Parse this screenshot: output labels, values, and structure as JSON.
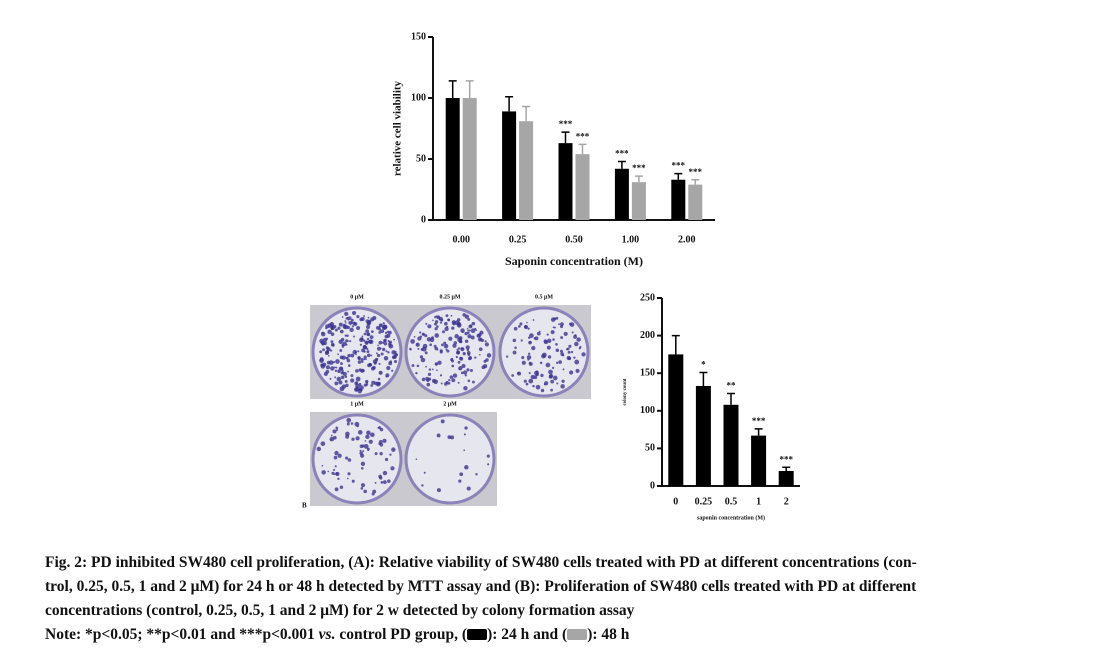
{
  "chart_data": [
    {
      "type": "bar",
      "ylabel": "relative cell viability",
      "xlabel": "Saponin concentration (M)",
      "categories": [
        "0.00",
        "0.25",
        "0.50",
        "1.00",
        "2.00"
      ],
      "series": [
        {
          "color": "#000000",
          "values": [
            100,
            89,
            63,
            42,
            33
          ],
          "errors": [
            14,
            12,
            9,
            6,
            5
          ],
          "annotations": [
            null,
            null,
            "***",
            "***",
            "***"
          ]
        },
        {
          "color": "#a6a6a6",
          "values": [
            100,
            81,
            54,
            31,
            29
          ],
          "errors": [
            14,
            12,
            8,
            5,
            4
          ],
          "annotations": [
            null,
            null,
            "***",
            "***",
            "***"
          ]
        }
      ],
      "ylim": [
        0,
        150
      ],
      "yticks": [
        0,
        50,
        100,
        150
      ]
    },
    {
      "type": "bar",
      "ylabel": "colony count",
      "xlabel": "saponin concentration (M)",
      "categories": [
        "0",
        "0.25",
        "0.5",
        "1",
        "2"
      ],
      "series": [
        {
          "color": "#000000",
          "values": [
            175,
            133,
            108,
            67,
            20
          ],
          "errors": [
            25,
            18,
            15,
            9,
            5
          ],
          "annotations": [
            null,
            "*",
            "**",
            "***",
            "***"
          ]
        }
      ],
      "ylim": [
        0,
        250
      ],
      "yticks": [
        0,
        50,
        100,
        150,
        200,
        250
      ]
    }
  ],
  "panel_label": "B",
  "dishes": [
    "0 μM",
    "0.25 μM",
    "0.5 μM",
    "1 μM",
    "2 μM"
  ],
  "caption": {
    "lines": [
      "Fig. 2: PD inhibited SW480 cell proliferation, (A): Relative viability of SW480 cells treated with PD at different concentrations (con-",
      "trol, 0.25, 0.5, 1 and 2 μM) for 24 h or 48 h detected by MTT assay and (B): Proliferation of SW480 cells treated with PD at different",
      "concentrations (control, 0.25, 0.5, 1 and 2 μM) for 2 w detected by colony formation assay"
    ],
    "note_start": "Note: *p<0.05; **p<0.01 and ***p<0.001 ",
    "note_italic": "vs.",
    "note_mid": " control PD group, (",
    "note_24": "): 24 h and (",
    "note_48": "): 48 h"
  }
}
